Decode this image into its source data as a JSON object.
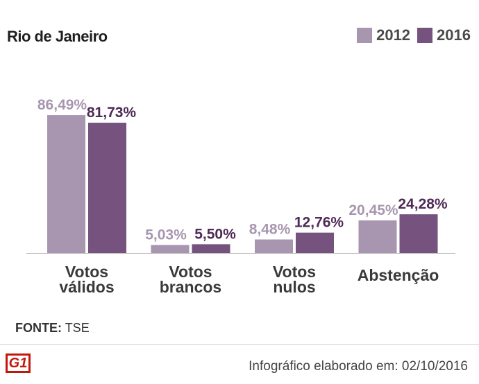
{
  "title": "Rio de Janeiro",
  "legend": [
    {
      "label": "2012",
      "color": "#a896b0"
    },
    {
      "label": "2016",
      "color": "#76527e"
    }
  ],
  "source": {
    "label": "FONTE:",
    "value": "TSE"
  },
  "logo_text": "G1",
  "credit": "Infográfico elaborado em: 02/10/2016",
  "chart_data": {
    "type": "bar",
    "categories": [
      [
        "Votos",
        "válidos"
      ],
      [
        "Votos",
        "brancos"
      ],
      [
        "Votos",
        "nulos"
      ],
      [
        "Abstenção"
      ]
    ],
    "series": [
      {
        "name": "2012",
        "color": "#a896b0",
        "label_color": "#a896b0",
        "values": [
          86.49,
          5.03,
          8.48,
          20.45
        ],
        "labels": [
          "86,49%",
          "5,03%",
          "8,48%",
          "20,45%"
        ]
      },
      {
        "name": "2016",
        "color": "#76527e",
        "label_color": "#4e2a56",
        "values": [
          81.73,
          5.5,
          12.76,
          24.28
        ],
        "labels": [
          "81,73%",
          "5,50%",
          "12,76%",
          "24,28%"
        ]
      }
    ],
    "ylim": [
      0,
      100
    ],
    "grid": false,
    "legend_position": "top-right"
  }
}
